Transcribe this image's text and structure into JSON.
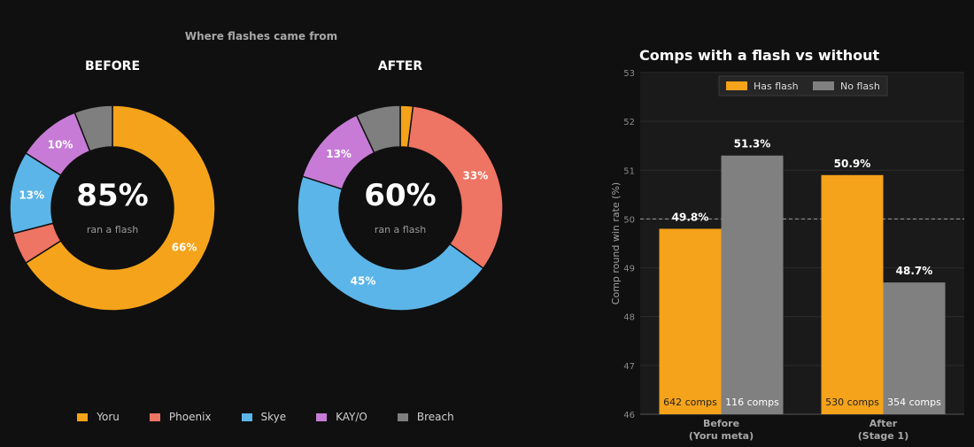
{
  "chart_data": [
    {
      "type": "pie",
      "title": "Where flashes came from",
      "subtitle": "BEFORE",
      "center_value": "85%",
      "center_label": "ran a flash",
      "labels": [
        "Yoru",
        "Phoenix",
        "Skye",
        "KAY/O",
        "Breach"
      ],
      "values": [
        66,
        5,
        13,
        10,
        6
      ],
      "value_labels": [
        "66%",
        "",
        "13%",
        "10%",
        ""
      ],
      "colors": [
        "#F5A31A",
        "#EE7463",
        "#5BB5E8",
        "#C77BD6",
        "#7F7F7F"
      ]
    },
    {
      "type": "pie",
      "subtitle": "AFTER",
      "center_value": "60%",
      "center_label": "ran a flash",
      "labels": [
        "Yoru",
        "Phoenix",
        "Skye",
        "KAY/O",
        "Breach"
      ],
      "values": [
        2,
        33,
        45,
        13,
        7
      ],
      "value_labels": [
        "",
        "33%",
        "45%",
        "13%",
        ""
      ],
      "colors": [
        "#F5A31A",
        "#EE7463",
        "#5BB5E8",
        "#C77BD6",
        "#7F7F7F"
      ]
    },
    {
      "type": "bar",
      "title": "Comps with a flash vs without",
      "ylabel": "Comp round win rate (%)",
      "categories": [
        [
          "Before",
          "(Yoru meta)"
        ],
        [
          "After",
          "(Stage 1)"
        ]
      ],
      "series": [
        {
          "name": "Has flash",
          "color": "#F5A31A",
          "values": [
            49.8,
            50.9
          ],
          "labels": [
            "49.8%",
            "50.9%"
          ],
          "counts": [
            "642 comps",
            "530 comps"
          ]
        },
        {
          "name": "No flash",
          "color": "#808080",
          "values": [
            51.3,
            48.7
          ],
          "labels": [
            "51.3%",
            "48.7%"
          ],
          "counts": [
            "116 comps",
            "354 comps"
          ]
        }
      ],
      "ylim": [
        46,
        53
      ],
      "yticks": [
        46,
        47,
        48,
        49,
        50,
        51,
        52,
        53
      ],
      "reference_line": 50,
      "grid": true,
      "legend": "top-center"
    }
  ],
  "legend": {
    "items": [
      {
        "label": "Yoru",
        "color": "#F5A31A"
      },
      {
        "label": "Phoenix",
        "color": "#EE7463"
      },
      {
        "label": "Skye",
        "color": "#5BB5E8"
      },
      {
        "label": "KAY/O",
        "color": "#C77BD6"
      },
      {
        "label": "Breach",
        "color": "#7F7F7F"
      }
    ]
  }
}
